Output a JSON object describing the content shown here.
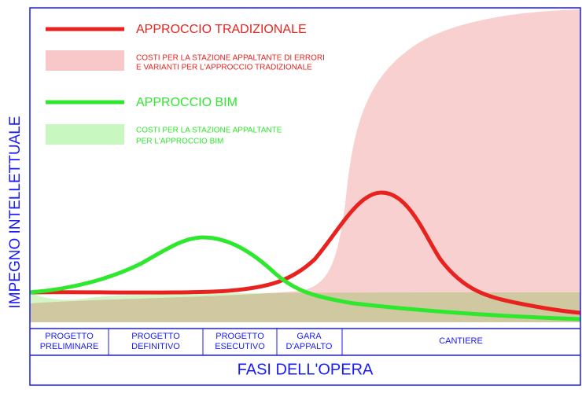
{
  "y_axis_label": "IMPEGNO INTELLETTUALE",
  "x_axis_label": "FASI DELL'OPERA",
  "legend": [
    {
      "label": "APPROCCIO TRADIZIONALE"
    },
    {
      "label": [
        "COSTI PER LA STAZIONE APPALTANTE DI ERRORI",
        "E VARIANTI PER L'APPROCCIO TRADIZIONALE"
      ]
    },
    {
      "label": "APPROCCIO BIM"
    },
    {
      "label": [
        "COSTI PER LA STAZIONE APPALTANTE",
        "PER L'APPROCCIO BIM"
      ]
    }
  ],
  "phases": [
    [
      "PROGETTO",
      "PRELIMINARE"
    ],
    [
      "PROGETTO",
      "DEFINITIVO"
    ],
    [
      "PROGETTO",
      "ESECUTIVO"
    ],
    [
      "GARA",
      "D'APPALTO"
    ],
    [
      "CANTIERE"
    ]
  ]
}
